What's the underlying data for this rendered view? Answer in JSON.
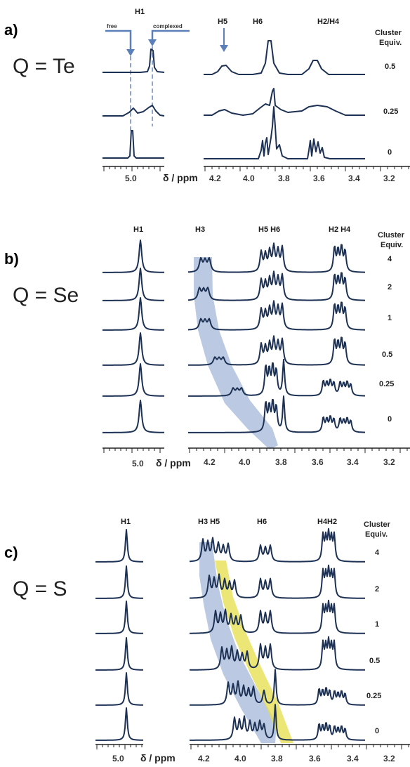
{
  "colors": {
    "trace": "#1c3154",
    "blue_band": "#8ea6cf",
    "yellow_band": "#e6dd4a",
    "arrow": "#5b7fb9"
  },
  "panels": [
    {
      "letter": "a)",
      "q_label": "Q = Te",
      "equiv_header": [
        "Cluster",
        "Equiv."
      ],
      "equivs": [
        "0.5",
        "0.25",
        "0"
      ],
      "peak_labels_left": [
        "H1"
      ],
      "peak_labels_right": [
        "H5",
        "H6",
        "H2/H4"
      ],
      "annotations": [
        "free",
        "complexed"
      ],
      "left_ticks": [
        "5.0"
      ],
      "right_ticks": [
        "4.2",
        "4.0",
        "3.8",
        "3.6",
        "3.4",
        "3.2"
      ],
      "axis_title": "δ / ppm"
    },
    {
      "letter": "b)",
      "q_label": "Q = Se",
      "equiv_header": [
        "Cluster",
        "Equiv."
      ],
      "equivs": [
        "4",
        "2",
        "1",
        "0.5",
        "0.25",
        "0"
      ],
      "peak_labels_left": [
        "H1"
      ],
      "peak_labels_right": [
        "H3",
        "H5 H6",
        "H2 H4"
      ],
      "left_ticks": [
        "5.0"
      ],
      "right_ticks": [
        "4.2",
        "4.0",
        "3.8",
        "3.6",
        "3.4",
        "3.2"
      ],
      "axis_title": "δ / ppm"
    },
    {
      "letter": "c)",
      "q_label": "Q = S",
      "equiv_header": [
        "Cluster",
        "Equiv."
      ],
      "equivs": [
        "4",
        "2",
        "1",
        "0.5",
        "0.25",
        "0"
      ],
      "peak_labels_left": [
        "H1"
      ],
      "peak_labels_right": [
        "H3 H5",
        "H6",
        "H4H2"
      ],
      "left_ticks": [
        "5.0"
      ],
      "right_ticks": [
        "4.2",
        "4.0",
        "3.8",
        "3.6",
        "3.4",
        "3.2"
      ],
      "axis_title": "δ / ppm"
    }
  ]
}
